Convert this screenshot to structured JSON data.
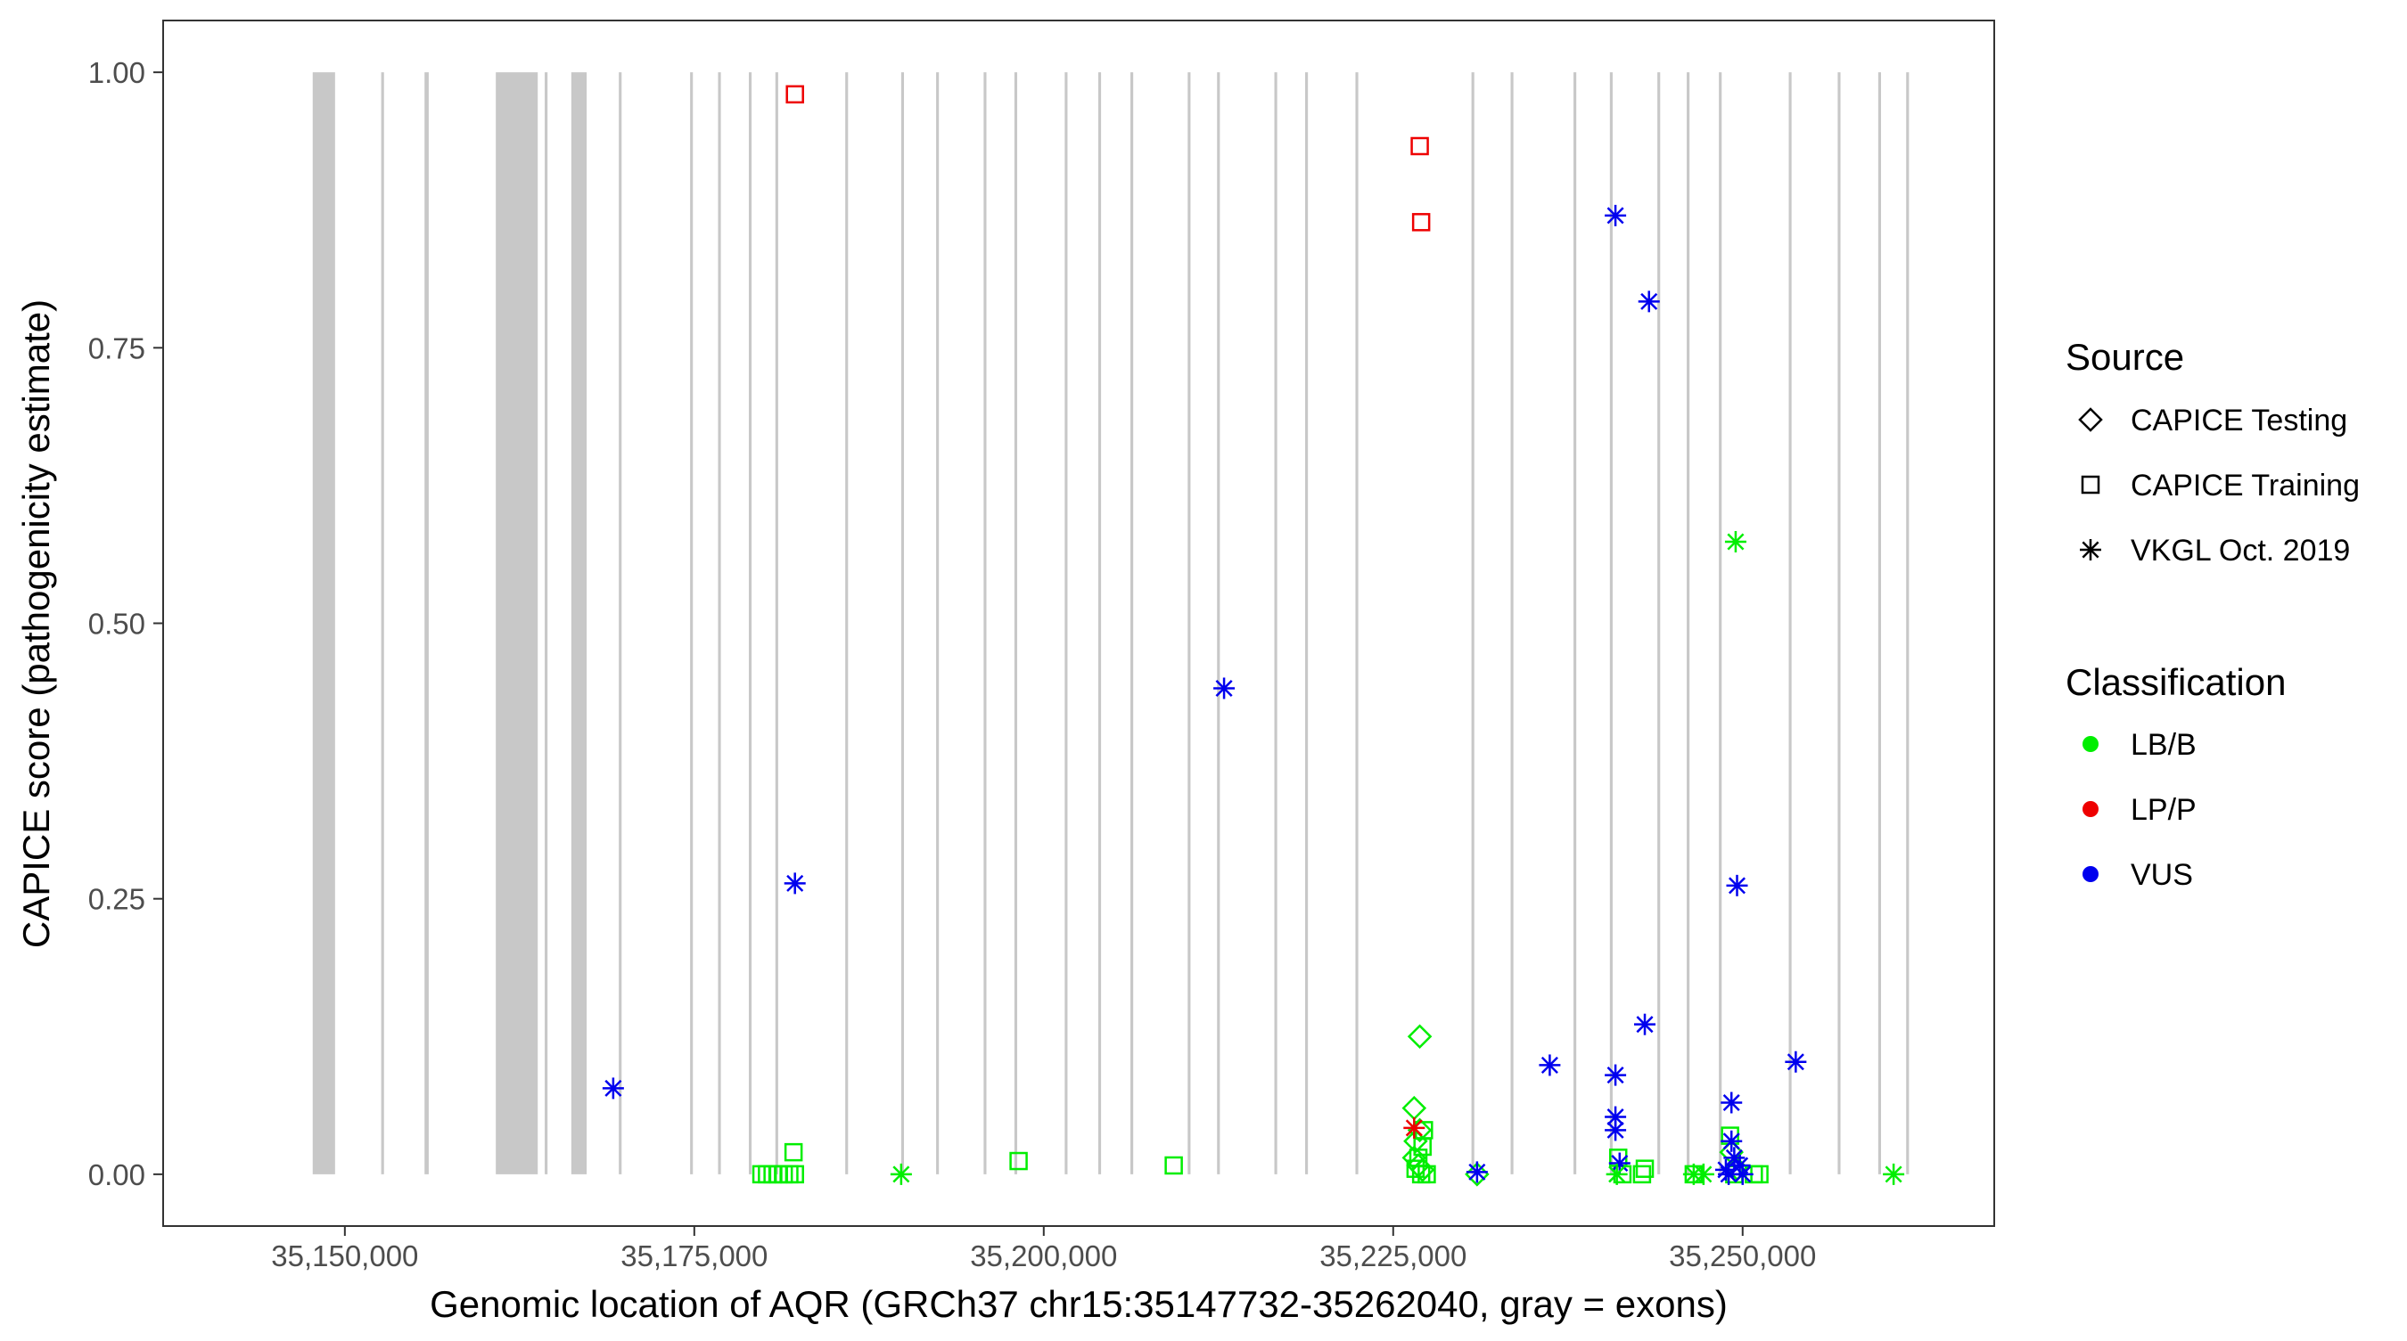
{
  "chart_data": {
    "type": "scatter",
    "title": "",
    "xlabel": "Genomic location of AQR (GRCh37 chr15:35147732-35262040, gray = exons)",
    "ylabel": "CAPICE score (pathogenicity estimate)",
    "xlim": [
      35137000,
      35268000
    ],
    "ylim": [
      -0.047,
      1.047
    ],
    "grid": false,
    "x_ticks": [
      35150000,
      35175000,
      35200000,
      35225000,
      35250000
    ],
    "x_tick_labels": [
      "35,150,000",
      "35,175,000",
      "35,200,000",
      "35,225,000",
      "35,250,000"
    ],
    "y_ticks": [
      0,
      0.25,
      0.5,
      0.75,
      1
    ],
    "y_tick_labels": [
      "0.00",
      "0.25",
      "0.50",
      "0.75",
      "1.00"
    ],
    "exons": [
      [
        35147700,
        35149300
      ],
      [
        35152600,
        35152800
      ],
      [
        35155700,
        35156000
      ],
      [
        35160800,
        35163800
      ],
      [
        35164300,
        35164500
      ],
      [
        35166200,
        35167300
      ],
      [
        35169600,
        35169800
      ],
      [
        35174700,
        35174900
      ],
      [
        35176700,
        35176900
      ],
      [
        35178900,
        35179100
      ],
      [
        35180800,
        35181000
      ],
      [
        35185800,
        35186000
      ],
      [
        35189800,
        35190000
      ],
      [
        35192300,
        35192500
      ],
      [
        35195700,
        35195900
      ],
      [
        35197900,
        35198100
      ],
      [
        35201500,
        35201700
      ],
      [
        35203900,
        35204100
      ],
      [
        35206200,
        35206400
      ],
      [
        35210300,
        35210500
      ],
      [
        35212400,
        35212600
      ],
      [
        35216500,
        35216700
      ],
      [
        35218700,
        35218900
      ],
      [
        35222300,
        35222500
      ],
      [
        35230600,
        35230800
      ],
      [
        35233400,
        35233600
      ],
      [
        35237900,
        35238100
      ],
      [
        35240500,
        35240700
      ],
      [
        35243900,
        35244100
      ],
      [
        35246000,
        35246200
      ],
      [
        35248300,
        35248500
      ],
      [
        35253300,
        35253500
      ],
      [
        35256800,
        35257000
      ],
      [
        35259700,
        35259900
      ],
      [
        35261700,
        35261900
      ]
    ],
    "legend": {
      "placement": "right",
      "source_title": "Source",
      "classification_title": "Classification",
      "source_items": [
        {
          "label": "CAPICE Testing",
          "shape": "diamond"
        },
        {
          "label": "CAPICE Training",
          "shape": "square"
        },
        {
          "label": "VKGL Oct. 2019",
          "shape": "asterisk"
        }
      ],
      "classification_items": [
        {
          "label": "LB/B",
          "color": "#00ee00"
        },
        {
          "label": "LP/P",
          "color": "#ee0000"
        },
        {
          "label": "VUS",
          "color": "#0000ee"
        }
      ]
    },
    "series": [
      {
        "name": "CAPICE Testing",
        "shape": "diamond",
        "points": [
          {
            "x": 35226900,
            "y": 0.125,
            "cls": "LB/B"
          },
          {
            "x": 35226500,
            "y": 0.06,
            "cls": "LB/B"
          },
          {
            "x": 35226900,
            "y": 0.04,
            "cls": "LB/B"
          },
          {
            "x": 35226600,
            "y": 0.03,
            "cls": "LB/B"
          },
          {
            "x": 35226500,
            "y": 0.015,
            "cls": "LB/B"
          },
          {
            "x": 35226800,
            "y": 0.008,
            "cls": "LB/B"
          },
          {
            "x": 35227100,
            "y": 0.004,
            "cls": "LB/B"
          },
          {
            "x": 35231000,
            "y": 0.0,
            "cls": "LB/B"
          },
          {
            "x": 35249200,
            "y": 0.02,
            "cls": "LB/B"
          },
          {
            "x": 35249600,
            "y": 0.005,
            "cls": "LB/B"
          }
        ]
      },
      {
        "name": "CAPICE Training",
        "shape": "square",
        "points": [
          {
            "x": 35182200,
            "y": 0.98,
            "cls": "LP/P"
          },
          {
            "x": 35226900,
            "y": 0.933,
            "cls": "LP/P"
          },
          {
            "x": 35227000,
            "y": 0.864,
            "cls": "LP/P"
          },
          {
            "x": 35182100,
            "y": 0.02,
            "cls": "LB/B"
          },
          {
            "x": 35198200,
            "y": 0.012,
            "cls": "LB/B"
          },
          {
            "x": 35209300,
            "y": 0.008,
            "cls": "LB/B"
          },
          {
            "x": 35179800,
            "y": 0.0,
            "cls": "LB/B"
          },
          {
            "x": 35180200,
            "y": 0.0,
            "cls": "LB/B"
          },
          {
            "x": 35180600,
            "y": 0.0,
            "cls": "LB/B"
          },
          {
            "x": 35181000,
            "y": 0.0,
            "cls": "LB/B"
          },
          {
            "x": 35181400,
            "y": 0.0,
            "cls": "LB/B"
          },
          {
            "x": 35181800,
            "y": 0.0,
            "cls": "LB/B"
          },
          {
            "x": 35182200,
            "y": 0.0,
            "cls": "LB/B"
          },
          {
            "x": 35227200,
            "y": 0.04,
            "cls": "LB/B"
          },
          {
            "x": 35227100,
            "y": 0.025,
            "cls": "LB/B"
          },
          {
            "x": 35226800,
            "y": 0.015,
            "cls": "LB/B"
          },
          {
            "x": 35226600,
            "y": 0.005,
            "cls": "LB/B"
          },
          {
            "x": 35227000,
            "y": 0.0,
            "cls": "LB/B"
          },
          {
            "x": 35227400,
            "y": 0.0,
            "cls": "LB/B"
          },
          {
            "x": 35241100,
            "y": 0.015,
            "cls": "LB/B"
          },
          {
            "x": 35241400,
            "y": 0.0,
            "cls": "LB/B"
          },
          {
            "x": 35243000,
            "y": 0.005,
            "cls": "LB/B"
          },
          {
            "x": 35242800,
            "y": 0.0,
            "cls": "LB/B"
          },
          {
            "x": 35246500,
            "y": 0.0,
            "cls": "LB/B"
          },
          {
            "x": 35249100,
            "y": 0.035,
            "cls": "LB/B"
          },
          {
            "x": 35249400,
            "y": 0.0,
            "cls": "LB/B"
          },
          {
            "x": 35250800,
            "y": 0.0,
            "cls": "LB/B"
          },
          {
            "x": 35251200,
            "y": 0.0,
            "cls": "LB/B"
          }
        ]
      },
      {
        "name": "VKGL Oct. 2019",
        "shape": "asterisk",
        "points": [
          {
            "x": 35169200,
            "y": 0.078,
            "cls": "VUS"
          },
          {
            "x": 35182200,
            "y": 0.264,
            "cls": "VUS"
          },
          {
            "x": 35212900,
            "y": 0.441,
            "cls": "VUS"
          },
          {
            "x": 35231000,
            "y": 0.002,
            "cls": "VUS"
          },
          {
            "x": 35236200,
            "y": 0.099,
            "cls": "VUS"
          },
          {
            "x": 35240900,
            "y": 0.87,
            "cls": "VUS"
          },
          {
            "x": 35240900,
            "y": 0.09,
            "cls": "VUS"
          },
          {
            "x": 35240900,
            "y": 0.052,
            "cls": "VUS"
          },
          {
            "x": 35240900,
            "y": 0.04,
            "cls": "VUS"
          },
          {
            "x": 35241200,
            "y": 0.01,
            "cls": "VUS"
          },
          {
            "x": 35243000,
            "y": 0.136,
            "cls": "VUS"
          },
          {
            "x": 35243300,
            "y": 0.792,
            "cls": "VUS"
          },
          {
            "x": 35249200,
            "y": 0.065,
            "cls": "VUS"
          },
          {
            "x": 35249200,
            "y": 0.03,
            "cls": "VUS"
          },
          {
            "x": 35249600,
            "y": 0.262,
            "cls": "VUS"
          },
          {
            "x": 35249400,
            "y": 0.015,
            "cls": "VUS"
          },
          {
            "x": 35249800,
            "y": 0.008,
            "cls": "VUS"
          },
          {
            "x": 35248800,
            "y": 0.004,
            "cls": "VUS"
          },
          {
            "x": 35249000,
            "y": 0.0,
            "cls": "VUS"
          },
          {
            "x": 35250000,
            "y": 0.0,
            "cls": "VUS"
          },
          {
            "x": 35253800,
            "y": 0.102,
            "cls": "VUS"
          },
          {
            "x": 35249500,
            "y": 0.574,
            "cls": "LB/B"
          },
          {
            "x": 35189800,
            "y": 0.0,
            "cls": "LB/B"
          },
          {
            "x": 35241000,
            "y": 0.0,
            "cls": "LB/B"
          },
          {
            "x": 35246500,
            "y": 0.0,
            "cls": "LB/B"
          },
          {
            "x": 35247200,
            "y": 0.0,
            "cls": "LB/B"
          },
          {
            "x": 35260800,
            "y": 0.0,
            "cls": "LB/B"
          },
          {
            "x": 35226500,
            "y": 0.042,
            "cls": "LP/P"
          }
        ]
      }
    ]
  }
}
